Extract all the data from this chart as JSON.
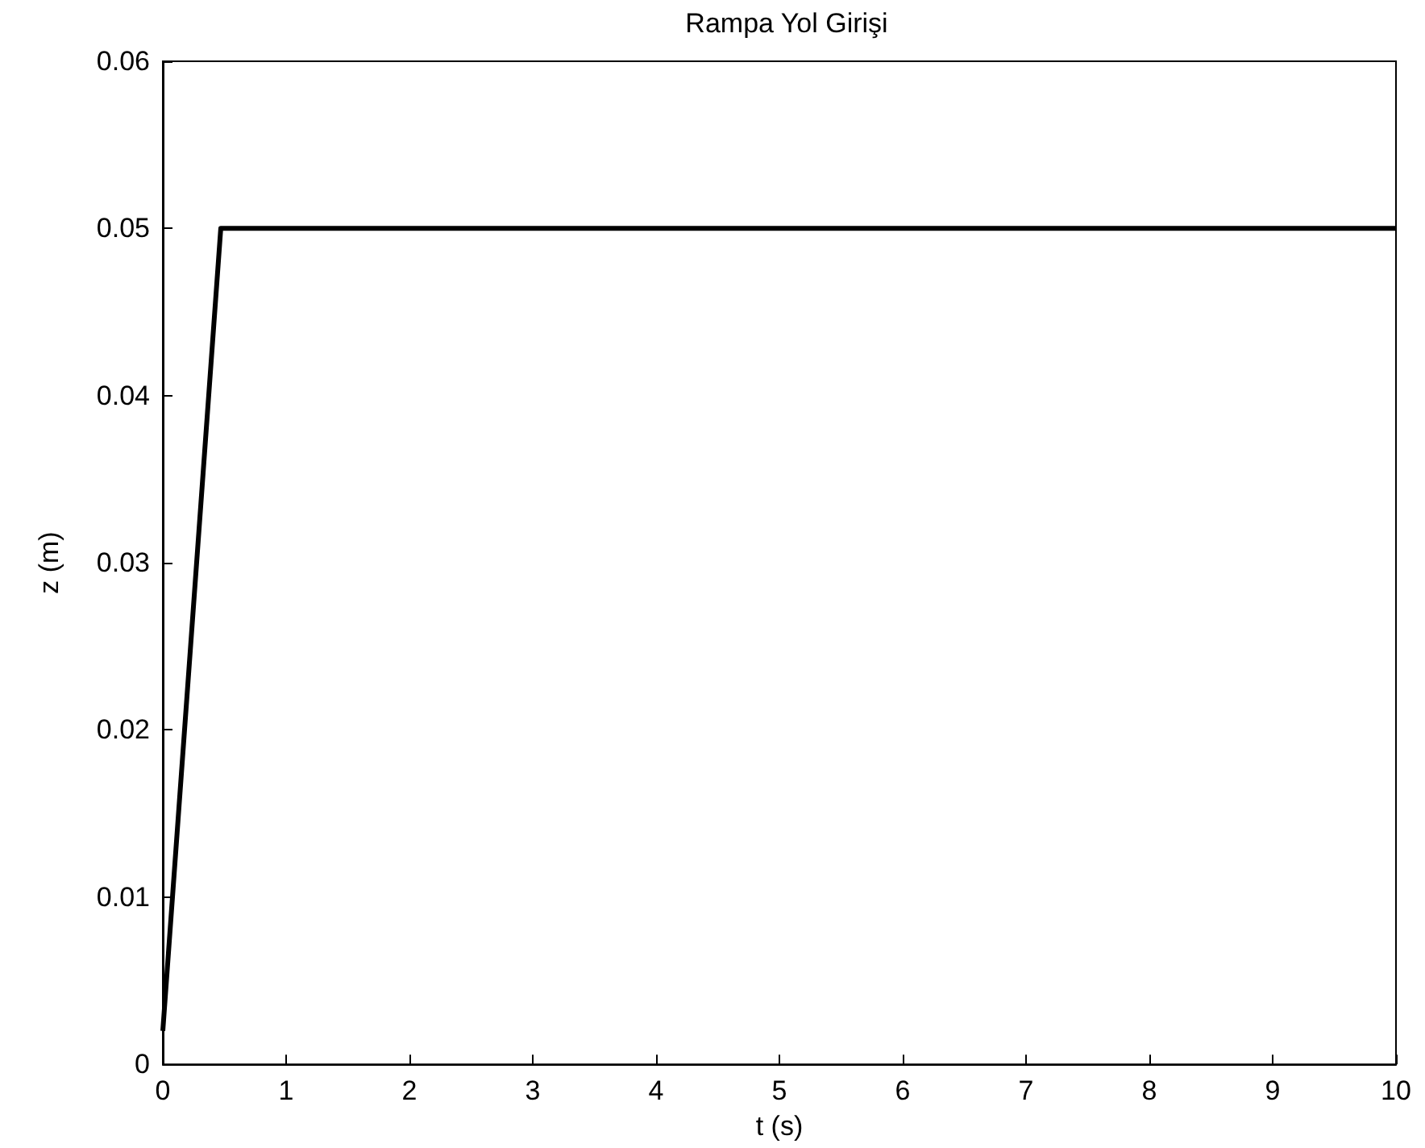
{
  "chart_data": {
    "type": "line",
    "title": "Rampa Yol Girişi",
    "xlabel": "t (s)",
    "ylabel": "z (m)",
    "x": [
      0,
      0.47,
      10
    ],
    "series": [
      {
        "color": "#000000",
        "values": [
          0.002,
          0.05,
          0.05
        ]
      }
    ],
    "xlim": [
      0,
      10
    ],
    "xticks": [
      0,
      1,
      2,
      3,
      4,
      5,
      6,
      7,
      8,
      9,
      10
    ],
    "ylim": [
      0,
      0.06
    ],
    "yticks": [
      0,
      0.01,
      0.02,
      0.03,
      0.04,
      0.05,
      0.06
    ],
    "grid": false,
    "marker": "none",
    "line_style": "solid"
  }
}
